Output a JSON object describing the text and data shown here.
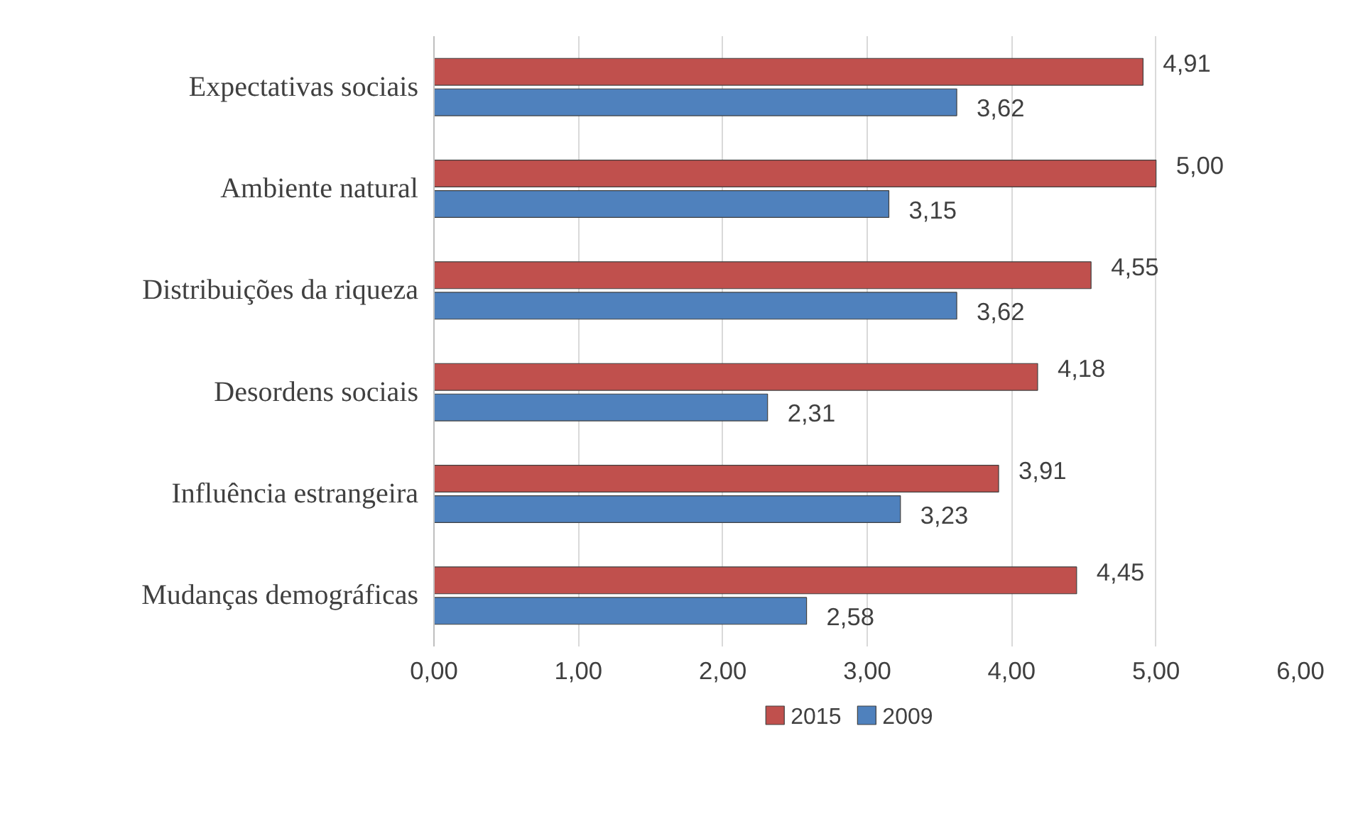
{
  "chart_data": {
    "type": "bar",
    "orientation": "horizontal",
    "categories": [
      "Expectativas sociais",
      "Ambiente natural",
      "Distribuições da riqueza",
      "Desordens sociais",
      "Influência estrangeira",
      "Mudanças demográficas"
    ],
    "series": [
      {
        "name": "2015",
        "color": "#c0504d",
        "values": [
          4.91,
          5.0,
          4.55,
          4.18,
          3.91,
          4.45
        ],
        "value_labels": [
          "4,91",
          "5,00",
          "4,55",
          "4,18",
          "3,91",
          "4,45"
        ]
      },
      {
        "name": "2009",
        "color": "#4f81bd",
        "values": [
          3.62,
          3.15,
          3.62,
          2.31,
          3.23,
          2.58
        ],
        "value_labels": [
          "3,62",
          "3,15",
          "3,62",
          "2,31",
          "3,23",
          "2,58"
        ]
      }
    ],
    "xlim": [
      0,
      6
    ],
    "xticks": [
      {
        "value": 0,
        "label": "0,00"
      },
      {
        "value": 1,
        "label": "1,00"
      },
      {
        "value": 2,
        "label": "2,00"
      },
      {
        "value": 3,
        "label": "3,00"
      },
      {
        "value": 4,
        "label": "4,00"
      },
      {
        "value": 5,
        "label": "5,00"
      },
      {
        "value": 6,
        "label": "6,00"
      }
    ],
    "grid": "x",
    "legend": "bottom"
  }
}
